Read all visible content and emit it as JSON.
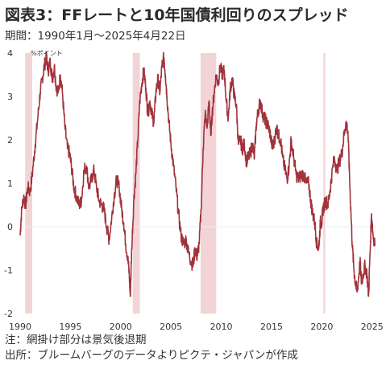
{
  "title": "図表3：FFレートと10年国債利回りのスプレッド",
  "subtitle": "期間：1990年1月～2025年4月22日",
  "notes": {
    "note": "注：網掛け部分は景気後退期",
    "source": "出所：ブルームバーグのデータよりピクテ・ジャパンが作成"
  },
  "colors": {
    "line": "#a0333c",
    "recession": "#f2d4d6",
    "zero_line": "#eeeeee",
    "axis_text": "#333333"
  },
  "chart_data": {
    "type": "line",
    "unit_label": "%ポイント",
    "xlim": [
      1990,
      2025.5
    ],
    "ylim": [
      -2,
      4
    ],
    "x_ticks": [
      1990,
      1995,
      2000,
      2005,
      2010,
      2015,
      2020,
      2025
    ],
    "y_ticks": [
      -2,
      -1,
      0,
      1,
      2,
      3,
      4
    ],
    "recessions": [
      {
        "start": 1990.5,
        "end": 1991.2
      },
      {
        "start": 2001.2,
        "end": 2001.9
      },
      {
        "start": 2007.95,
        "end": 2009.5
      },
      {
        "start": 2020.15,
        "end": 2020.35
      }
    ],
    "series": [
      {
        "values": [
          [
            1990.0,
            -0.2
          ],
          [
            1990.15,
            0.4
          ],
          [
            1990.35,
            0.7
          ],
          [
            1990.55,
            0.5
          ],
          [
            1990.75,
            0.9
          ],
          [
            1991.0,
            0.8
          ],
          [
            1991.25,
            1.3
          ],
          [
            1991.5,
            1.9
          ],
          [
            1991.75,
            2.5
          ],
          [
            1992.0,
            3.1
          ],
          [
            1992.2,
            3.4
          ],
          [
            1992.4,
            3.7
          ],
          [
            1992.6,
            3.9
          ],
          [
            1992.8,
            3.6
          ],
          [
            1993.0,
            3.8
          ],
          [
            1993.2,
            3.4
          ],
          [
            1993.4,
            3.7
          ],
          [
            1993.6,
            3.2
          ],
          [
            1993.8,
            3.1
          ],
          [
            1994.0,
            3.5
          ],
          [
            1994.2,
            3.1
          ],
          [
            1994.45,
            2.3
          ],
          [
            1994.7,
            1.8
          ],
          [
            1994.9,
            1.7
          ],
          [
            1995.1,
            1.4
          ],
          [
            1995.35,
            0.9
          ],
          [
            1995.6,
            0.7
          ],
          [
            1995.85,
            0.5
          ],
          [
            1996.1,
            0.6
          ],
          [
            1996.35,
            1.3
          ],
          [
            1996.6,
            1.4
          ],
          [
            1996.85,
            0.9
          ],
          [
            1997.1,
            1.1
          ],
          [
            1997.35,
            1.3
          ],
          [
            1997.6,
            0.9
          ],
          [
            1997.85,
            0.6
          ],
          [
            1998.1,
            0.5
          ],
          [
            1998.35,
            0.4
          ],
          [
            1998.6,
            0.0
          ],
          [
            1998.85,
            -0.3
          ],
          [
            1999.1,
            0.2
          ],
          [
            1999.35,
            0.7
          ],
          [
            1999.6,
            1.1
          ],
          [
            1999.85,
            0.9
          ],
          [
            2000.1,
            0.4
          ],
          [
            2000.3,
            0.1
          ],
          [
            2000.5,
            -0.4
          ],
          [
            2000.7,
            -0.7
          ],
          [
            2000.85,
            -1.1
          ],
          [
            2000.95,
            -1.6
          ],
          [
            2001.1,
            -0.5
          ],
          [
            2001.3,
            0.6
          ],
          [
            2001.5,
            1.2
          ],
          [
            2001.7,
            2.0
          ],
          [
            2001.9,
            2.9
          ],
          [
            2002.1,
            3.3
          ],
          [
            2002.3,
            3.6
          ],
          [
            2002.5,
            3.2
          ],
          [
            2002.7,
            2.6
          ],
          [
            2002.9,
            2.9
          ],
          [
            2003.1,
            2.6
          ],
          [
            2003.3,
            2.4
          ],
          [
            2003.5,
            3.1
          ],
          [
            2003.7,
            3.4
          ],
          [
            2003.9,
            3.1
          ],
          [
            2004.1,
            3.7
          ],
          [
            2004.3,
            3.9
          ],
          [
            2004.45,
            3.5
          ],
          [
            2004.6,
            3.0
          ],
          [
            2004.8,
            2.4
          ],
          [
            2005.0,
            1.9
          ],
          [
            2005.25,
            1.4
          ],
          [
            2005.5,
            0.9
          ],
          [
            2005.75,
            0.3
          ],
          [
            2006.0,
            -0.2
          ],
          [
            2006.25,
            -0.4
          ],
          [
            2006.5,
            -0.3
          ],
          [
            2006.75,
            -0.6
          ],
          [
            2007.0,
            -0.8
          ],
          [
            2007.2,
            -0.9
          ],
          [
            2007.4,
            -0.5
          ],
          [
            2007.6,
            -0.7
          ],
          [
            2007.8,
            -0.4
          ],
          [
            2008.0,
            0.4
          ],
          [
            2008.2,
            1.8
          ],
          [
            2008.4,
            2.6
          ],
          [
            2008.6,
            2.3
          ],
          [
            2008.8,
            2.9
          ],
          [
            2008.95,
            2.1
          ],
          [
            2009.1,
            2.6
          ],
          [
            2009.3,
            3.1
          ],
          [
            2009.5,
            3.5
          ],
          [
            2009.7,
            3.3
          ],
          [
            2009.9,
            3.7
          ],
          [
            2010.1,
            3.5
          ],
          [
            2010.3,
            3.6
          ],
          [
            2010.5,
            2.9
          ],
          [
            2010.7,
            2.5
          ],
          [
            2010.9,
            3.2
          ],
          [
            2011.1,
            3.4
          ],
          [
            2011.3,
            3.0
          ],
          [
            2011.5,
            2.8
          ],
          [
            2011.7,
            1.9
          ],
          [
            2011.9,
            2.0
          ],
          [
            2012.1,
            1.8
          ],
          [
            2012.3,
            1.9
          ],
          [
            2012.5,
            1.5
          ],
          [
            2012.7,
            1.6
          ],
          [
            2012.9,
            1.7
          ],
          [
            2013.1,
            1.9
          ],
          [
            2013.3,
            1.6
          ],
          [
            2013.5,
            2.4
          ],
          [
            2013.7,
            2.7
          ],
          [
            2013.9,
            2.9
          ],
          [
            2014.1,
            2.6
          ],
          [
            2014.3,
            2.5
          ],
          [
            2014.5,
            2.4
          ],
          [
            2014.7,
            2.3
          ],
          [
            2014.9,
            2.1
          ],
          [
            2015.1,
            1.8
          ],
          [
            2015.3,
            2.0
          ],
          [
            2015.5,
            2.3
          ],
          [
            2015.7,
            2.1
          ],
          [
            2015.9,
            2.0
          ],
          [
            2016.1,
            1.6
          ],
          [
            2016.35,
            1.3
          ],
          [
            2016.55,
            1.1
          ],
          [
            2016.75,
            1.4
          ],
          [
            2016.95,
            2.0
          ],
          [
            2017.2,
            1.6
          ],
          [
            2017.45,
            1.2
          ],
          [
            2017.7,
            1.1
          ],
          [
            2017.95,
            1.2
          ],
          [
            2018.2,
            1.2
          ],
          [
            2018.45,
            1.0
          ],
          [
            2018.7,
            1.0
          ],
          [
            2018.9,
            0.6
          ],
          [
            2019.1,
            0.3
          ],
          [
            2019.3,
            0.1
          ],
          [
            2019.5,
            -0.4
          ],
          [
            2019.7,
            -0.5
          ],
          [
            2019.85,
            0.1
          ],
          [
            2020.0,
            0.1
          ],
          [
            2020.12,
            0.4
          ],
          [
            2020.25,
            0.5
          ],
          [
            2020.4,
            0.6
          ],
          [
            2020.6,
            0.5
          ],
          [
            2020.8,
            0.8
          ],
          [
            2021.0,
            1.2
          ],
          [
            2021.25,
            1.6
          ],
          [
            2021.5,
            1.3
          ],
          [
            2021.75,
            1.5
          ],
          [
            2022.0,
            1.7
          ],
          [
            2022.2,
            2.1
          ],
          [
            2022.4,
            2.4
          ],
          [
            2022.6,
            2.2
          ],
          [
            2022.75,
            1.2
          ],
          [
            2022.9,
            0.3
          ],
          [
            2023.05,
            -0.5
          ],
          [
            2023.2,
            -1.0
          ],
          [
            2023.35,
            -1.3
          ],
          [
            2023.5,
            -1.5
          ],
          [
            2023.65,
            -1.2
          ],
          [
            2023.8,
            -0.8
          ],
          [
            2023.95,
            -1.3
          ],
          [
            2024.1,
            -1.1
          ],
          [
            2024.3,
            -0.9
          ],
          [
            2024.5,
            -1.1
          ],
          [
            2024.65,
            -1.6
          ],
          [
            2024.8,
            -0.6
          ],
          [
            2024.95,
            0.3
          ],
          [
            2025.1,
            -0.2
          ],
          [
            2025.3,
            -0.4
          ]
        ]
      }
    ]
  }
}
